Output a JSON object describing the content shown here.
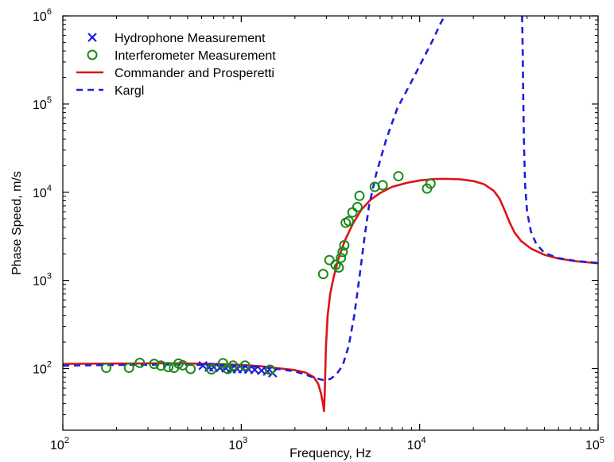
{
  "chart_data": {
    "type": "line",
    "xlabel": "Frequency, Hz",
    "ylabel": "Phase Speed, m/s",
    "x_scale": "log",
    "y_scale": "log",
    "xlim": [
      100,
      100000
    ],
    "ylim": [
      20,
      1000000
    ],
    "x_ticks": [
      {
        "value": 100,
        "base": "10",
        "exp": "2"
      },
      {
        "value": 1000,
        "base": "10",
        "exp": "3"
      },
      {
        "value": 10000,
        "base": "10",
        "exp": "4"
      },
      {
        "value": 100000,
        "base": "10",
        "exp": "5"
      }
    ],
    "y_ticks": [
      {
        "value": 100,
        "base": "10",
        "exp": "2"
      },
      {
        "value": 1000,
        "base": "10",
        "exp": "3"
      },
      {
        "value": 10000,
        "base": "10",
        "exp": "4"
      },
      {
        "value": 100000,
        "base": "10",
        "exp": "5"
      },
      {
        "value": 1000000,
        "base": "10",
        "exp": "6"
      }
    ],
    "grid": false,
    "legend_position": "top-left",
    "series": [
      {
        "name": "Hydrophone Measurement",
        "kind": "scatter",
        "marker": "x",
        "color": "#1f1fdd",
        "points": [
          [
            610,
            108
          ],
          [
            660,
            103
          ],
          [
            700,
            104
          ],
          [
            760,
            102
          ],
          [
            820,
            101
          ],
          [
            880,
            99
          ],
          [
            950,
            99
          ],
          [
            1020,
            99
          ],
          [
            1100,
            98
          ],
          [
            1190,
            97
          ],
          [
            1300,
            95
          ],
          [
            1400,
            93
          ],
          [
            1500,
            89
          ]
        ]
      },
      {
        "name": "Interferometer Measurement",
        "kind": "scatter",
        "marker": "circle",
        "color": "#1a8a1a",
        "points": [
          [
            175,
            102
          ],
          [
            235,
            102
          ],
          [
            270,
            116
          ],
          [
            325,
            113
          ],
          [
            355,
            108
          ],
          [
            390,
            104
          ],
          [
            420,
            102
          ],
          [
            445,
            114
          ],
          [
            470,
            109
          ],
          [
            520,
            99
          ],
          [
            680,
            98
          ],
          [
            790,
            115
          ],
          [
            840,
            99
          ],
          [
            900,
            108
          ],
          [
            1050,
            108
          ],
          [
            1450,
            97
          ],
          [
            2880,
            1180
          ],
          [
            3120,
            1700
          ],
          [
            3380,
            1500
          ],
          [
            3520,
            1400
          ],
          [
            3620,
            1800
          ],
          [
            3700,
            2100
          ],
          [
            3780,
            2500
          ],
          [
            3850,
            4500
          ],
          [
            4000,
            4700
          ],
          [
            4200,
            5900
          ],
          [
            4480,
            6800
          ],
          [
            4600,
            9100
          ],
          [
            5600,
            11500
          ],
          [
            6200,
            12000
          ],
          [
            7600,
            15200
          ],
          [
            11000,
            11000
          ],
          [
            11500,
            12500
          ]
        ]
      },
      {
        "name": "Commander and Prosperetti",
        "kind": "line",
        "style": "solid",
        "color": "#dd1515",
        "points": [
          [
            100,
            113
          ],
          [
            200,
            114
          ],
          [
            400,
            115
          ],
          [
            700,
            113
          ],
          [
            1000,
            110
          ],
          [
            1300,
            106
          ],
          [
            1600,
            101
          ],
          [
            2000,
            96
          ],
          [
            2300,
            90
          ],
          [
            2550,
            80
          ],
          [
            2700,
            67
          ],
          [
            2800,
            52
          ],
          [
            2870,
            40
          ],
          [
            2910,
            33
          ],
          [
            2940,
            55
          ],
          [
            2980,
            170
          ],
          [
            3050,
            400
          ],
          [
            3150,
            700
          ],
          [
            3300,
            1100
          ],
          [
            3500,
            1750
          ],
          [
            3800,
            2800
          ],
          [
            4200,
            4300
          ],
          [
            4700,
            6300
          ],
          [
            5300,
            8200
          ],
          [
            6000,
            9800
          ],
          [
            7000,
            11500
          ],
          [
            8500,
            12800
          ],
          [
            10000,
            13600
          ],
          [
            12000,
            14100
          ],
          [
            14000,
            14200
          ],
          [
            17000,
            14000
          ],
          [
            20000,
            13400
          ],
          [
            23000,
            12300
          ],
          [
            26000,
            10400
          ],
          [
            28000,
            8500
          ],
          [
            30000,
            6200
          ],
          [
            32000,
            4500
          ],
          [
            34000,
            3500
          ],
          [
            37000,
            2800
          ],
          [
            42000,
            2300
          ],
          [
            50000,
            1950
          ],
          [
            60000,
            1770
          ],
          [
            75000,
            1650
          ],
          [
            100000,
            1560
          ]
        ]
      },
      {
        "name": "Kargl",
        "kind": "line",
        "style": "dashed",
        "color": "#1f1fdd",
        "points": [
          [
            100,
            108
          ],
          [
            200,
            110
          ],
          [
            400,
            111
          ],
          [
            700,
            110
          ],
          [
            1000,
            107
          ],
          [
            1300,
            104
          ],
          [
            1600,
            99
          ],
          [
            2000,
            93
          ],
          [
            2300,
            85
          ],
          [
            2600,
            78
          ],
          [
            2900,
            74
          ],
          [
            3150,
            76
          ],
          [
            3400,
            85
          ],
          [
            3700,
            108
          ],
          [
            4000,
            180
          ],
          [
            4300,
            400
          ],
          [
            4600,
            1100
          ],
          [
            4900,
            3000
          ],
          [
            5200,
            7000
          ],
          [
            5700,
            16000
          ],
          [
            6500,
            40000
          ],
          [
            7500,
            90000
          ],
          [
            9000,
            180000
          ],
          [
            10500,
            330000
          ],
          [
            12000,
            560000
          ],
          [
            13000,
            800000
          ],
          [
            13800,
            1000000
          ]
        ]
      },
      {
        "name": "Kargl",
        "kind": "line",
        "style": "dashed",
        "color": "#1f1fdd",
        "points": [
          [
            37500,
            1000000
          ],
          [
            37800,
            400000
          ],
          [
            38100,
            100000
          ],
          [
            38500,
            30000
          ],
          [
            39000,
            12000
          ],
          [
            40000,
            6000
          ],
          [
            42000,
            3600
          ],
          [
            45000,
            2600
          ],
          [
            50000,
            2050
          ],
          [
            60000,
            1790
          ],
          [
            75000,
            1660
          ],
          [
            100000,
            1580
          ]
        ]
      }
    ]
  }
}
